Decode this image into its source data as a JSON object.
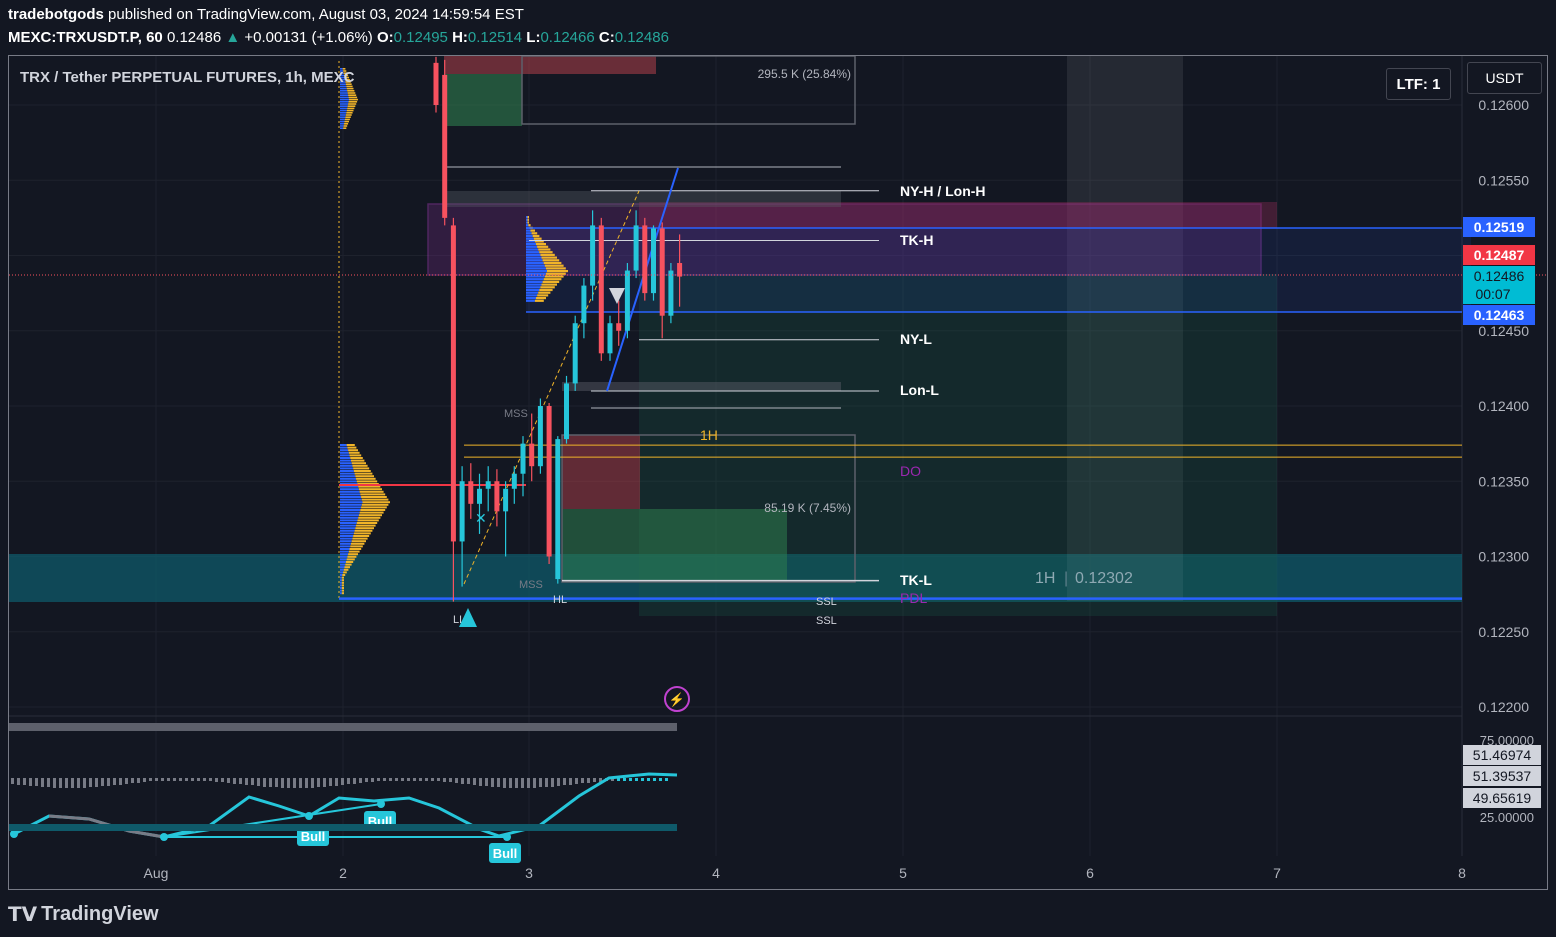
{
  "header": {
    "author": "tradebotgods",
    "published": "published on TradingView.com, August 03, 2024 14:59:54 EST",
    "symbol_line": "MEXC:TRXUSDT.P, 60",
    "last": "0.12486",
    "change": "+0.00131 (+1.06%)",
    "o_label": "O:",
    "o": "0.12495",
    "h_label": "H:",
    "h": "0.12514",
    "l_label": "L:",
    "l": "0.12466",
    "c_label": "C:",
    "c": "0.12486"
  },
  "chart": {
    "title": "TRX / Tether PERPETUAL FUTURES, 1h, MEXC",
    "currency_button": "USDT",
    "ltf_button": "LTF: 1",
    "price_badges": {
      "upper_blue": "0.12519",
      "red": "0.12487",
      "current": "0.12486",
      "countdown": "00:07",
      "lower_blue": "0.12463"
    },
    "annotations": {
      "vol_top": "295.5 K (25.84%)",
      "vol_bottom": "85.19 K (7.45%)",
      "ny_h": "NY-H / Lon-H",
      "tk_h": "TK-H",
      "ny_l": "NY-L",
      "lon_l": "Lon-L",
      "h1": "1H",
      "do": "DO",
      "tk_l": "TK-L",
      "pdl": "PDL",
      "ssl1": "SSL",
      "ssl2": "SSL",
      "mss1": "MSS",
      "mss2": "MSS",
      "hl": "HL",
      "ll": "LL",
      "zone_label": "1H",
      "zone_value": "0.12302"
    },
    "osc": {
      "axis_top": "75.00000",
      "axis_bottom": "25.00000",
      "badges": [
        "51.46974",
        "51.39537",
        "49.65619"
      ],
      "bull_labels": [
        "Bull",
        "Bull",
        "Bull"
      ]
    },
    "colors": {
      "up": "#26c6da",
      "down": "#f7525f",
      "blue_line": "#2962ff",
      "gold": "#f0b429",
      "purple_box": "#c042d0",
      "teal_zone": "#0f5a6a"
    }
  },
  "chart_data": {
    "type": "candlestick",
    "title": "TRX / Tether PERPETUAL FUTURES, 1h, MEXC",
    "y_axis": {
      "ticks": [
        "0.12600",
        "0.12550",
        "0.12500",
        "0.12450",
        "0.12400",
        "0.12350",
        "0.12300",
        "0.12250",
        "0.12200"
      ],
      "range": [
        0.1219,
        0.1263
      ]
    },
    "x_axis": {
      "ticks": [
        "Aug",
        "2",
        "3",
        "4",
        "5",
        "6",
        "7",
        "8"
      ]
    },
    "levels": [
      {
        "name": "NY-H / Lon-H",
        "price": 0.12543
      },
      {
        "name": "TK-H",
        "price": 0.1251
      },
      {
        "name": "NY-L",
        "price": 0.12444
      },
      {
        "name": "Lon-L",
        "price": 0.1241
      },
      {
        "name": "1H",
        "price": 0.12374
      },
      {
        "name": "DO",
        "price": 0.12366
      },
      {
        "name": "TK-L",
        "price": 0.12284
      },
      {
        "name": "PDL",
        "price": 0.12272
      }
    ],
    "candles": [
      {
        "o": 0.12628,
        "h": 0.12632,
        "l": 0.12595,
        "c": 0.126
      },
      {
        "o": 0.1262,
        "h": 0.1263,
        "l": 0.1252,
        "c": 0.12525
      },
      {
        "o": 0.1252,
        "h": 0.12525,
        "l": 0.1227,
        "c": 0.1231
      },
      {
        "o": 0.1231,
        "h": 0.1236,
        "l": 0.1228,
        "c": 0.1235
      },
      {
        "o": 0.1235,
        "h": 0.12362,
        "l": 0.12325,
        "c": 0.12335
      },
      {
        "o": 0.12335,
        "h": 0.12355,
        "l": 0.12315,
        "c": 0.12345
      },
      {
        "o": 0.12345,
        "h": 0.1236,
        "l": 0.1233,
        "c": 0.1235
      },
      {
        "o": 0.1235,
        "h": 0.12358,
        "l": 0.1232,
        "c": 0.1233
      },
      {
        "o": 0.1233,
        "h": 0.1235,
        "l": 0.123,
        "c": 0.12345
      },
      {
        "o": 0.12345,
        "h": 0.1236,
        "l": 0.12335,
        "c": 0.12355
      },
      {
        "o": 0.12355,
        "h": 0.1238,
        "l": 0.1234,
        "c": 0.12375
      },
      {
        "o": 0.12375,
        "h": 0.12395,
        "l": 0.1235,
        "c": 0.1236
      },
      {
        "o": 0.1236,
        "h": 0.12405,
        "l": 0.12355,
        "c": 0.124
      },
      {
        "o": 0.124,
        "h": 0.12402,
        "l": 0.12295,
        "c": 0.123
      },
      {
        "o": 0.12285,
        "h": 0.1238,
        "l": 0.12282,
        "c": 0.12378
      },
      {
        "o": 0.12378,
        "h": 0.1242,
        "l": 0.12375,
        "c": 0.12415
      },
      {
        "o": 0.12415,
        "h": 0.1246,
        "l": 0.1241,
        "c": 0.12455
      },
      {
        "o": 0.12455,
        "h": 0.12485,
        "l": 0.12445,
        "c": 0.1248
      },
      {
        "o": 0.1248,
        "h": 0.1253,
        "l": 0.1247,
        "c": 0.1252
      },
      {
        "o": 0.1252,
        "h": 0.12525,
        "l": 0.1243,
        "c": 0.12435
      },
      {
        "o": 0.12435,
        "h": 0.1246,
        "l": 0.1243,
        "c": 0.12455
      },
      {
        "o": 0.12455,
        "h": 0.1247,
        "l": 0.1244,
        "c": 0.1245
      },
      {
        "o": 0.1245,
        "h": 0.12495,
        "l": 0.12445,
        "c": 0.1249
      },
      {
        "o": 0.1249,
        "h": 0.1253,
        "l": 0.12485,
        "c": 0.1252
      },
      {
        "o": 0.1252,
        "h": 0.12525,
        "l": 0.1247,
        "c": 0.12475
      },
      {
        "o": 0.12475,
        "h": 0.1252,
        "l": 0.1247,
        "c": 0.12518
      },
      {
        "o": 0.12518,
        "h": 0.12522,
        "l": 0.12445,
        "c": 0.1246
      },
      {
        "o": 0.1246,
        "h": 0.12495,
        "l": 0.12455,
        "c": 0.1249
      },
      {
        "o": 0.12495,
        "h": 0.12514,
        "l": 0.12466,
        "c": 0.12486
      }
    ]
  }
}
